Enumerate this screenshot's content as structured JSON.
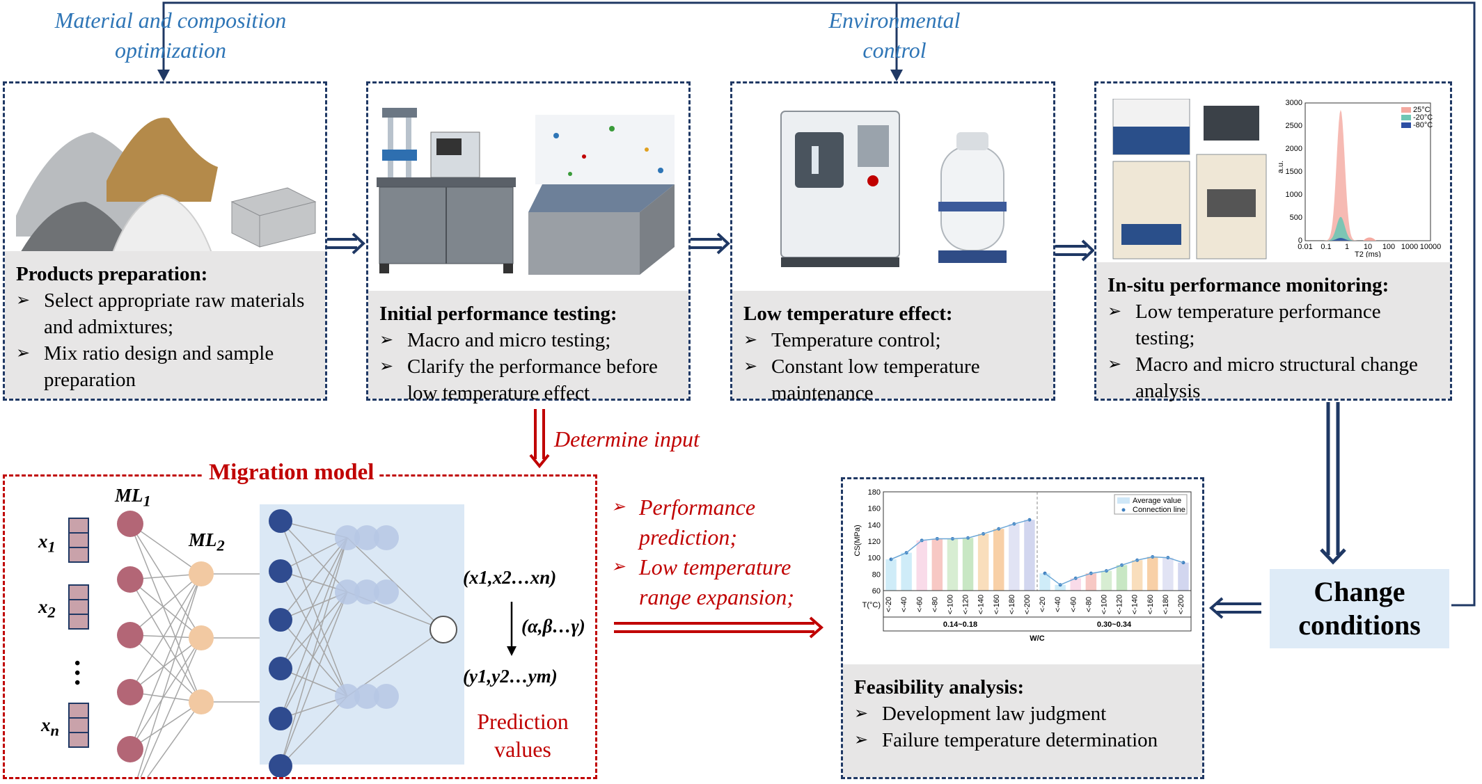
{
  "top_labels": {
    "material_line1": "Material and composition",
    "material_line2": "optimization",
    "env_line1": "Environmental",
    "env_line2": "control"
  },
  "stages": [
    {
      "title": "Products preparation:",
      "bullets": [
        "Select appropriate raw materials and admixtures;",
        "Mix ratio design and sample preparation"
      ]
    },
    {
      "title": "Initial performance testing:",
      "bullets": [
        "Macro and micro testing;",
        "Clarify the performance before low temperature effect"
      ]
    },
    {
      "title": "Low temperature effect:",
      "bullets": [
        "Temperature control;",
        "Constant low temperature maintenance"
      ]
    },
    {
      "title": "In-situ performance monitoring:",
      "bullets": [
        "Low temperature performance testing;",
        "Macro and micro structural change analysis"
      ]
    }
  ],
  "determine_input": "Determine input",
  "migration": {
    "title": "Migration model",
    "ml1": "ML",
    "ml1_sub": "1",
    "ml2": "ML",
    "ml2_sub": "2",
    "inputs": [
      {
        "base": "x",
        "sub": "1"
      },
      {
        "base": "x",
        "sub": "2"
      },
      {
        "base": "x",
        "sub": "n"
      }
    ],
    "dots": "•\n•\n•",
    "eq_in": "(x1,x2…xn)",
    "eq_params": "(α,β…γ)",
    "eq_out": "(y1,y2…ym)",
    "prediction_line1": "Prediction",
    "prediction_line2": "values"
  },
  "middle_bullets": [
    {
      "line1": "Performance",
      "line2": "prediction;"
    },
    {
      "line1": "Low temperature",
      "line2": "range expansion;"
    }
  ],
  "feasibility": {
    "title": "Feasibility analysis:",
    "bullets": [
      "Development law judgment",
      "Failure temperature determination"
    ]
  },
  "change_conditions": {
    "line1": "Change",
    "line2": "conditions"
  },
  "nmr_chart": {
    "y_ticks": [
      "3000",
      "2500",
      "2000",
      "1500",
      "1000",
      "500",
      "0"
    ],
    "x_ticks": [
      "0.01",
      "0.1",
      "1",
      "10",
      "100",
      "1000",
      "10000"
    ],
    "y_label": "a.u.",
    "x_label": "T2 (ms)",
    "legend": [
      {
        "name": "25°C",
        "color": "#f4a9a0"
      },
      {
        "name": "-20°C",
        "color": "#6fc6b4"
      },
      {
        "name": "-80°C",
        "color": "#2c4fa3"
      }
    ]
  },
  "cs_chart": {
    "y_label": "CS(MPa)",
    "y_ticks": [
      "180",
      "160",
      "140",
      "120",
      "100",
      "80",
      "60"
    ],
    "row_label": "T(°C)",
    "temps": [
      "<-20",
      "<-40",
      "<-60",
      "<-80",
      "<-100",
      "<-120",
      "<-140",
      "<-160",
      "<-180",
      "<-200"
    ],
    "groups": [
      "0.14~0.18",
      "0.30~0.34"
    ],
    "x_label": "W/C",
    "legend": [
      "Average value",
      "Connection line"
    ],
    "group1_values": [
      98,
      106,
      121,
      123,
      123,
      124,
      129,
      135,
      141,
      146
    ],
    "group2_values": [
      81,
      67,
      75,
      81,
      84,
      91,
      97,
      101,
      100,
      94
    ],
    "bar_colors": [
      "#bfe6f5",
      "#bfe6f5",
      "#f7cfe2",
      "#f4b6b0",
      "#c9e7c3",
      "#b5dfb0",
      "#f7d3a6",
      "#f6c08a",
      "#d7d9f0",
      "#c3c8ea"
    ]
  },
  "colors": {
    "navy": "#1f3864",
    "red": "#c00000",
    "blue_text": "#2e75b6",
    "gray_panel": "#e7e6e6",
    "light_blue": "#deebf7"
  }
}
